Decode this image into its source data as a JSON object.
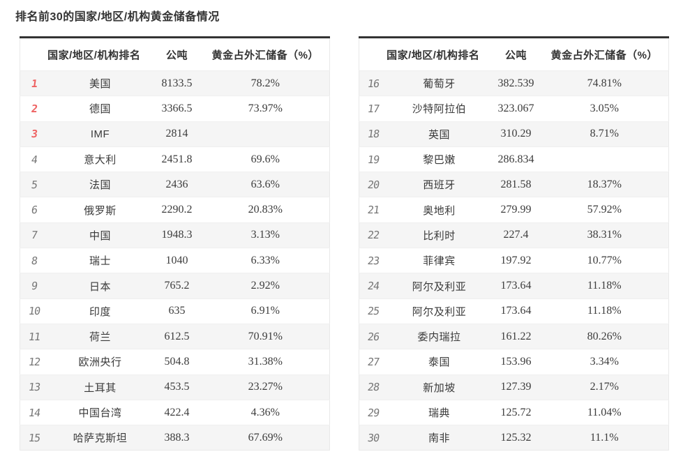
{
  "title": "排名前30的国家/地区/机构黄金储备情况",
  "colors": {
    "rank_top3": "#ee6262",
    "rank_default": "#757575",
    "row_stripe_bg": "#f5f5f5",
    "table_top_border": "#333333",
    "text": "#3a3a3a"
  },
  "tables": {
    "headers": {
      "rank_country": "国家/地区/机构排名",
      "tonnes": "公吨",
      "pct": "黄金占外汇储备（%）"
    },
    "left": {
      "rows": [
        {
          "rank": "1",
          "name": "美国",
          "tonnes": "8133.5",
          "pct": "78.2%"
        },
        {
          "rank": "2",
          "name": "德国",
          "tonnes": "3366.5",
          "pct": "73.97%"
        },
        {
          "rank": "3",
          "name": "IMF",
          "tonnes": "2814",
          "pct": ""
        },
        {
          "rank": "4",
          "name": "意大利",
          "tonnes": "2451.8",
          "pct": "69.6%"
        },
        {
          "rank": "5",
          "name": "法国",
          "tonnes": "2436",
          "pct": "63.6%"
        },
        {
          "rank": "6",
          "name": "俄罗斯",
          "tonnes": "2290.2",
          "pct": "20.83%"
        },
        {
          "rank": "7",
          "name": "中国",
          "tonnes": "1948.3",
          "pct": "3.13%"
        },
        {
          "rank": "8",
          "name": "瑞士",
          "tonnes": "1040",
          "pct": "6.33%"
        },
        {
          "rank": "9",
          "name": "日本",
          "tonnes": "765.2",
          "pct": "2.92%"
        },
        {
          "rank": "10",
          "name": "印度",
          "tonnes": "635",
          "pct": "6.91%"
        },
        {
          "rank": "11",
          "name": "荷兰",
          "tonnes": "612.5",
          "pct": "70.91%"
        },
        {
          "rank": "12",
          "name": "欧洲央行",
          "tonnes": "504.8",
          "pct": "31.38%"
        },
        {
          "rank": "13",
          "name": "土耳其",
          "tonnes": "453.5",
          "pct": "23.27%"
        },
        {
          "rank": "14",
          "name": "中国台湾",
          "tonnes": "422.4",
          "pct": "4.36%"
        },
        {
          "rank": "15",
          "name": "哈萨克斯坦",
          "tonnes": "388.3",
          "pct": "67.69%"
        }
      ]
    },
    "right": {
      "rows": [
        {
          "rank": "16",
          "name": "葡萄牙",
          "tonnes": "382.539",
          "pct": "74.81%"
        },
        {
          "rank": "17",
          "name": "沙特阿拉伯",
          "tonnes": "323.067",
          "pct": "3.05%"
        },
        {
          "rank": "18",
          "name": "英国",
          "tonnes": "310.29",
          "pct": "8.71%"
        },
        {
          "rank": "19",
          "name": "黎巴嫩",
          "tonnes": "286.834",
          "pct": ""
        },
        {
          "rank": "20",
          "name": "西班牙",
          "tonnes": "281.58",
          "pct": "18.37%"
        },
        {
          "rank": "21",
          "name": "奥地利",
          "tonnes": "279.99",
          "pct": "57.92%"
        },
        {
          "rank": "22",
          "name": "比利时",
          "tonnes": "227.4",
          "pct": "38.31%"
        },
        {
          "rank": "23",
          "name": "菲律宾",
          "tonnes": "197.92",
          "pct": "10.77%"
        },
        {
          "rank": "24",
          "name": "阿尔及利亚",
          "tonnes": "173.64",
          "pct": "11.18%"
        },
        {
          "rank": "25",
          "name": "阿尔及利亚",
          "tonnes": "173.64",
          "pct": "11.18%"
        },
        {
          "rank": "26",
          "name": "委内瑞拉",
          "tonnes": "161.22",
          "pct": "80.26%"
        },
        {
          "rank": "27",
          "name": "泰国",
          "tonnes": "153.96",
          "pct": "3.34%"
        },
        {
          "rank": "28",
          "name": "新加坡",
          "tonnes": "127.39",
          "pct": "2.17%"
        },
        {
          "rank": "29",
          "name": "瑞典",
          "tonnes": "125.72",
          "pct": "11.04%"
        },
        {
          "rank": "30",
          "name": "南非",
          "tonnes": "125.32",
          "pct": "11.1%"
        }
      ]
    }
  },
  "chart_data": {
    "type": "table",
    "title": "排名前30的国家/地区/机构黄金储备情况",
    "columns": [
      "排名",
      "国家/地区/机构",
      "公吨",
      "黄金占外汇储备（%）"
    ],
    "rows": [
      [
        1,
        "美国",
        8133.5,
        "78.2%"
      ],
      [
        2,
        "德国",
        3366.5,
        "73.97%"
      ],
      [
        3,
        "IMF",
        2814,
        ""
      ],
      [
        4,
        "意大利",
        2451.8,
        "69.6%"
      ],
      [
        5,
        "法国",
        2436,
        "63.6%"
      ],
      [
        6,
        "俄罗斯",
        2290.2,
        "20.83%"
      ],
      [
        7,
        "中国",
        1948.3,
        "3.13%"
      ],
      [
        8,
        "瑞士",
        1040,
        "6.33%"
      ],
      [
        9,
        "日本",
        765.2,
        "2.92%"
      ],
      [
        10,
        "印度",
        635,
        "6.91%"
      ],
      [
        11,
        "荷兰",
        612.5,
        "70.91%"
      ],
      [
        12,
        "欧洲央行",
        504.8,
        "31.38%"
      ],
      [
        13,
        "土耳其",
        453.5,
        "23.27%"
      ],
      [
        14,
        "中国台湾",
        422.4,
        "4.36%"
      ],
      [
        15,
        "哈萨克斯坦",
        388.3,
        "67.69%"
      ],
      [
        16,
        "葡萄牙",
        382.539,
        "74.81%"
      ],
      [
        17,
        "沙特阿拉伯",
        323.067,
        "3.05%"
      ],
      [
        18,
        "英国",
        310.29,
        "8.71%"
      ],
      [
        19,
        "黎巴嫩",
        286.834,
        ""
      ],
      [
        20,
        "西班牙",
        281.58,
        "18.37%"
      ],
      [
        21,
        "奥地利",
        279.99,
        "57.92%"
      ],
      [
        22,
        "比利时",
        227.4,
        "38.31%"
      ],
      [
        23,
        "菲律宾",
        197.92,
        "10.77%"
      ],
      [
        24,
        "阿尔及利亚",
        173.64,
        "11.18%"
      ],
      [
        25,
        "阿尔及利亚",
        173.64,
        "11.18%"
      ],
      [
        26,
        "委内瑞拉",
        161.22,
        "80.26%"
      ],
      [
        27,
        "泰国",
        153.96,
        "3.34%"
      ],
      [
        28,
        "新加坡",
        127.39,
        "2.17%"
      ],
      [
        29,
        "瑞典",
        125.72,
        "11.04%"
      ],
      [
        30,
        "南非",
        125.32,
        "11.1%"
      ]
    ]
  }
}
